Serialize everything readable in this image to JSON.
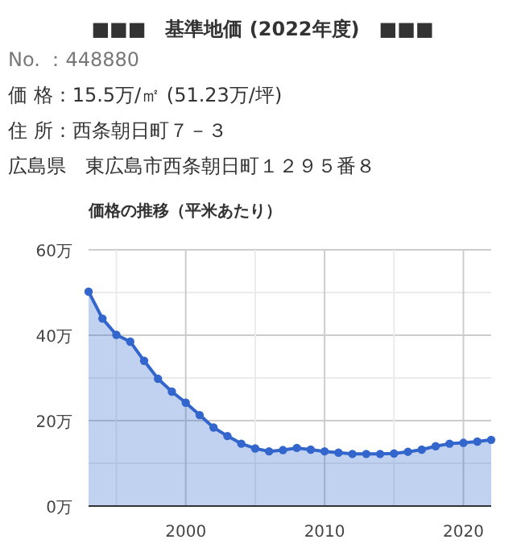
{
  "chart_data": {
    "type": "area",
    "title": "■■■　基準地価 (2022年度)　■■■",
    "subtitle": "価格の推移（平米あたり）",
    "annotations": [
      "No. ：448880",
      "価 格：15.5万/㎡ (51.23万/坪)",
      "住 所：西条朝日町７－３",
      "広島県　東広島市西条朝日町１２９５番８"
    ],
    "x": [
      1993,
      1994,
      1995,
      1996,
      1997,
      1998,
      1999,
      2000,
      2001,
      2002,
      2003,
      2004,
      2005,
      2006,
      2007,
      2008,
      2009,
      2010,
      2011,
      2012,
      2013,
      2014,
      2015,
      2016,
      2017,
      2018,
      2019,
      2020,
      2021,
      2022
    ],
    "series": [
      {
        "color": "#3366cc",
        "values": [
          50.2,
          43.9,
          40.1,
          38.5,
          34.0,
          29.8,
          26.8,
          24.2,
          21.3,
          18.4,
          16.4,
          14.6,
          13.5,
          12.8,
          13.1,
          13.6,
          13.2,
          12.8,
          12.5,
          12.2,
          12.2,
          12.2,
          12.3,
          12.7,
          13.2,
          14.0,
          14.6,
          14.8,
          15.1,
          15.5
        ]
      }
    ],
    "xlim": [
      1993,
      2022
    ],
    "xticks": [
      {
        "value": 1995,
        "label": null
      },
      {
        "value": 2000,
        "label": "2000"
      },
      {
        "value": 2005,
        "label": null
      },
      {
        "value": 2010,
        "label": "2010"
      },
      {
        "value": 2015,
        "label": null
      },
      {
        "value": 2020,
        "label": "2020"
      }
    ],
    "ylim": [
      0,
      60
    ],
    "yticks": [
      {
        "value": 0,
        "label": "0万"
      },
      {
        "value": 10,
        "label": null
      },
      {
        "value": 20,
        "label": "20万"
      },
      {
        "value": 30,
        "label": null
      },
      {
        "value": 40,
        "label": "40万"
      },
      {
        "value": 50,
        "label": null
      },
      {
        "value": 60,
        "label": "60万"
      }
    ],
    "grid": true,
    "marker": "circle",
    "line_style": "solid"
  }
}
